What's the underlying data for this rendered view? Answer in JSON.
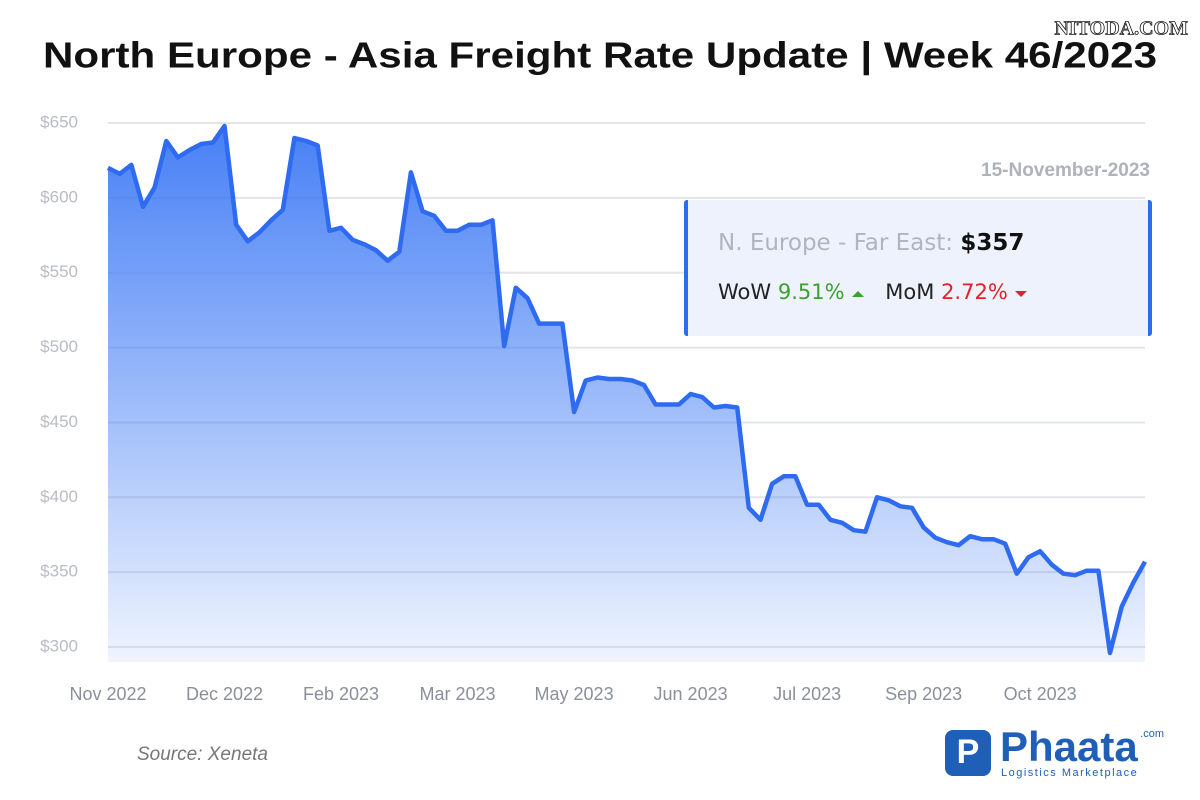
{
  "chart_data": {
    "type": "line",
    "title": "North Europe - Asia Freight Rate Update | Week 46/2023",
    "categories": [
      "Nov 2022",
      null,
      null,
      null,
      null,
      null,
      null,
      null,
      null,
      null,
      "Dec 2022",
      null,
      null,
      null,
      null,
      null,
      null,
      null,
      null,
      null,
      "Feb 2023",
      null,
      null,
      null,
      null,
      null,
      null,
      null,
      null,
      null,
      "Mar 2023",
      null,
      null,
      null,
      null,
      null,
      null,
      null,
      null,
      null,
      "May 2023",
      null,
      null,
      null,
      null,
      null,
      null,
      null,
      null,
      null,
      "Jun 2023",
      null,
      null,
      null,
      null,
      null,
      null,
      null,
      null,
      null,
      "Jul 2023",
      null,
      null,
      null,
      null,
      null,
      null,
      null,
      null,
      null,
      "Sep 2023",
      null,
      null,
      null,
      null,
      null,
      null,
      null,
      null,
      null,
      "Oct 2023",
      null,
      null,
      null,
      null,
      null,
      null,
      null,
      null,
      null
    ],
    "values": [
      620,
      616,
      622,
      594,
      607,
      638,
      627,
      632,
      636,
      637,
      648,
      582,
      571,
      577,
      585,
      592,
      640,
      638,
      635,
      578,
      580,
      572,
      569,
      565,
      558,
      564,
      617,
      591,
      588,
      578,
      578,
      582,
      582,
      585,
      501,
      540,
      533,
      516,
      516,
      516,
      457,
      478,
      480,
      479,
      479,
      478,
      475,
      462,
      462,
      462,
      469,
      467,
      460,
      461,
      460,
      393,
      385,
      409,
      414,
      414,
      395,
      395,
      385,
      383,
      378,
      377,
      400,
      398,
      394,
      393,
      380,
      373,
      370,
      368,
      374,
      372,
      372,
      369,
      349,
      360,
      364,
      355,
      349,
      348,
      351,
      351,
      296,
      327,
      343,
      357
    ],
    "color": "#2f6bf0",
    "ylim": [
      290,
      650
    ],
    "yticks": [
      {
        "value": 300,
        "label": "$300"
      },
      {
        "value": 350,
        "label": "$350"
      },
      {
        "value": 400,
        "label": "$400"
      },
      {
        "value": 450,
        "label": "$450"
      },
      {
        "value": 500,
        "label": "$500"
      },
      {
        "value": 550,
        "label": "$550"
      },
      {
        "value": 600,
        "label": "$600"
      },
      {
        "value": 650,
        "label": "$650"
      }
    ],
    "grid": true,
    "annotation": {
      "date": "15-November-2023",
      "label": "N. Europe - Far East:",
      "price": "$357",
      "wow_label": "WoW",
      "wow": "9.51%",
      "mom_label": "MoM",
      "mom": "2.72%"
    }
  },
  "watermark": "NITODA.COM",
  "source": "Source: Xeneta",
  "brand": {
    "name": "Phaata",
    "suffix": ".com",
    "tagline": "Logistics Marketplace"
  }
}
